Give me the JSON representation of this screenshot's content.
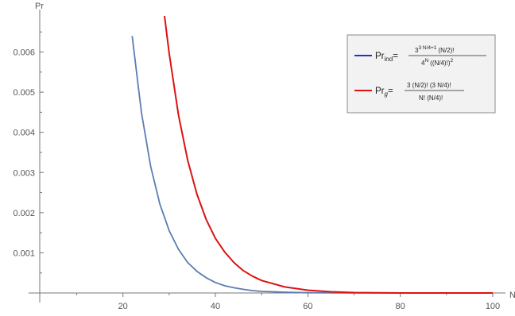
{
  "chart_data": {
    "type": "line",
    "xlabel": "N",
    "ylabel": "Pr",
    "xlim": [
      2,
      100
    ],
    "ylim": [
      0,
      0.0069
    ],
    "x_ticks": [
      20,
      40,
      60,
      80,
      100
    ],
    "y_ticks": [
      0.001,
      0.002,
      0.003,
      0.004,
      0.005,
      0.006
    ],
    "x_tick_labels": [
      "20",
      "40",
      "60",
      "80",
      "100"
    ],
    "y_tick_labels": [
      "0.001",
      "0.002",
      "0.003",
      "0.004",
      "0.005",
      "0.006"
    ],
    "legend_placement": "top-right",
    "series": [
      {
        "name": "Pr_ind",
        "color": "#5b7db1",
        "legend_color": "#1f2fd8",
        "x": [
          22,
          24,
          26,
          28,
          30,
          32,
          34,
          36,
          38,
          40,
          42,
          44,
          46,
          48,
          50,
          55,
          60,
          70,
          80,
          90,
          100
        ],
        "y": [
          0.0064,
          0.00449,
          0.00315,
          0.00221,
          0.00155,
          0.00109,
          0.00076,
          0.00054,
          0.00038,
          0.00026,
          0.00018,
          0.00013,
          9e-05,
          6e-05,
          4e-05,
          2e-05,
          5e-06,
          0,
          0,
          0,
          0
        ]
      },
      {
        "name": "Pr_g",
        "color": "#dd1111",
        "legend_color": "#dd1111",
        "x": [
          29,
          30,
          32,
          34,
          36,
          38,
          40,
          42,
          44,
          46,
          48,
          50,
          55,
          60,
          65,
          70,
          80,
          90,
          100
        ],
        "y": [
          0.0069,
          0.00596,
          0.00444,
          0.00331,
          0.00246,
          0.00183,
          0.00136,
          0.00102,
          0.00076,
          0.00056,
          0.00042,
          0.00031,
          0.00015,
          7e-05,
          3e-05,
          1e-05,
          0,
          0,
          0
        ]
      }
    ],
    "legend": {
      "entries": [
        {
          "series": "Pr_ind",
          "lhs_main": "Pr",
          "lhs_sub": "ind",
          "num_a": "3",
          "num_a_sup": "3 N/4+1",
          "num_b": "(N/2)!",
          "den_a": "4",
          "den_a_sup": "N",
          "den_b": "((N/4)!)",
          "den_b_sup": "2"
        },
        {
          "series": "Pr_g",
          "lhs_main": "Pr",
          "lhs_sub": "g",
          "num_full": "3 (N/2)! (3 N/4)!",
          "den_full": "N! (N/4)!"
        }
      ]
    }
  }
}
